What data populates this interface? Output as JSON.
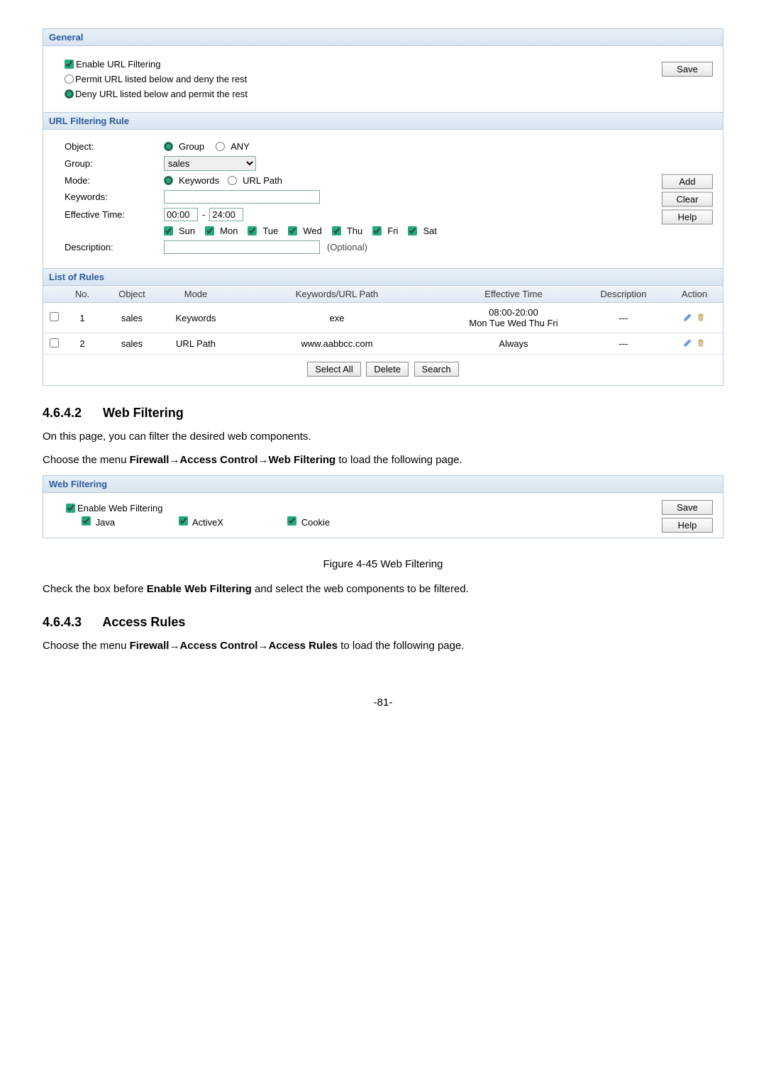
{
  "general": {
    "header": "General",
    "enable_label": "Enable URL Filtering",
    "enable_checked": true,
    "permit_label": "Permit URL listed below and deny the rest",
    "deny_label": "Deny URL listed below and permit the rest",
    "policy": "deny",
    "save_label": "Save"
  },
  "url_rule": {
    "header": "URL Filtering Rule",
    "object_label": "Object:",
    "object_group_label": "Group",
    "object_any_label": "ANY",
    "object_value": "group",
    "group_label": "Group:",
    "group_selected": "sales",
    "mode_label": "Mode:",
    "mode_keywords_label": "Keywords",
    "mode_urlpath_label": "URL Path",
    "mode_value": "keywords",
    "keywords_label": "Keywords:",
    "keywords_value": "",
    "eff_time_label": "Effective Time:",
    "time_from": "00:00",
    "time_sep": "-",
    "time_to": "24:00",
    "days": {
      "sun": {
        "label": "Sun",
        "checked": true
      },
      "mon": {
        "label": "Mon",
        "checked": true
      },
      "tue": {
        "label": "Tue",
        "checked": true
      },
      "wed": {
        "label": "Wed",
        "checked": true
      },
      "thu": {
        "label": "Thu",
        "checked": true
      },
      "fri": {
        "label": "Fri",
        "checked": true
      },
      "sat": {
        "label": "Sat",
        "checked": true
      }
    },
    "desc_label": "Description:",
    "desc_value": "",
    "optional_text": "(Optional)",
    "add_label": "Add",
    "clear_label": "Clear",
    "help_label": "Help"
  },
  "rules_list": {
    "header": "List of Rules",
    "columns": {
      "no": "No.",
      "object": "Object",
      "mode": "Mode",
      "kw": "Keywords/URL Path",
      "time": "Effective Time",
      "desc": "Description",
      "action": "Action"
    },
    "rows": [
      {
        "no": "1",
        "object": "sales",
        "mode": "Keywords",
        "kw": "exe",
        "time_line1": "08:00-20:00",
        "time_line2": "Mon Tue Wed Thu Fri",
        "desc": "---"
      },
      {
        "no": "2",
        "object": "sales",
        "mode": "URL Path",
        "kw": "www.aabbcc.com",
        "time_line1": "Always",
        "time_line2": "",
        "desc": "---"
      }
    ],
    "select_all_label": "Select All",
    "delete_label": "Delete",
    "search_label": "Search"
  },
  "text": {
    "heading1_num": "4.6.4.2",
    "heading1_title": "Web Filtering",
    "p1": "On this page, you can filter the desired web components.",
    "p2_a": "Choose the menu ",
    "p2_b": "Firewall→Access Control→Web Filtering",
    "p2_c": " to load the following page.",
    "figcap": "Figure 4-45 Web Filtering",
    "p3_a": "Check the box before ",
    "p3_b": "Enable Web Filtering",
    "p3_c": " and select the web components to be filtered.",
    "heading2_num": "4.6.4.3",
    "heading2_title": "Access Rules",
    "p4_a": "Choose the menu ",
    "p4_b": "Firewall→Access Control→Access Rules",
    "p4_c": " to load the following page.",
    "pagenum": "-81-"
  },
  "webfilter": {
    "header": "Web Filtering",
    "enable_label": "Enable Web Filtering",
    "enable_checked": true,
    "java_label": "Java",
    "java_checked": true,
    "activex_label": "ActiveX",
    "activex_checked": true,
    "cookie_label": "Cookie",
    "cookie_checked": true,
    "save_label": "Save",
    "help_label": "Help"
  },
  "colors": {
    "header_text": "#2a5a9c",
    "pencil": "#4a88c8",
    "trash": "#c8a878"
  }
}
